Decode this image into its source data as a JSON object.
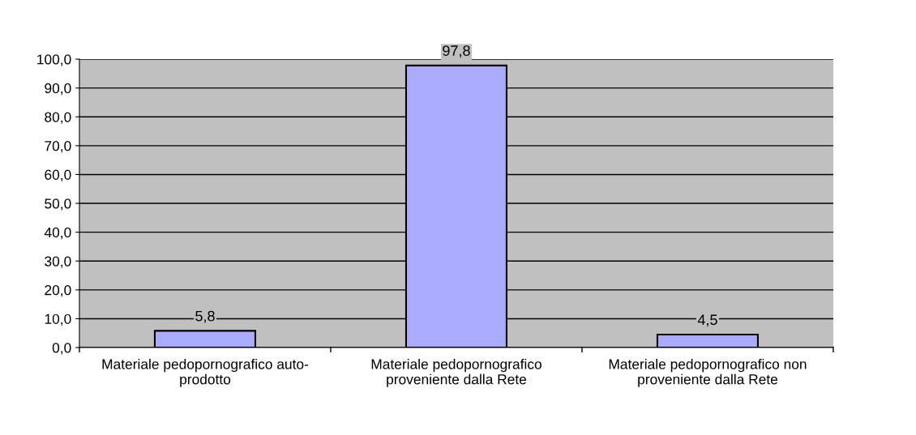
{
  "chart_data": {
    "type": "bar",
    "categories": [
      "Materiale pedopornografico auto-\nprodotto",
      "Materiale pedopornografico\nproveniente dalla Rete",
      "Materiale pedopornografico non\nproveniente dalla Rete"
    ],
    "values": [
      5.8,
      97.8,
      4.5
    ],
    "value_labels": [
      "5,8",
      "97,8",
      "4,5"
    ],
    "color": "#aaaaff",
    "ylim": [
      0,
      100
    ],
    "yticks": [
      {
        "value": 0,
        "label": "0,0"
      },
      {
        "value": 10,
        "label": "10,0"
      },
      {
        "value": 20,
        "label": "20,0"
      },
      {
        "value": 30,
        "label": "30,0"
      },
      {
        "value": 40,
        "label": "40,0"
      },
      {
        "value": 50,
        "label": "50,0"
      },
      {
        "value": 60,
        "label": "60,0"
      },
      {
        "value": 70,
        "label": "70,0"
      },
      {
        "value": 80,
        "label": "80,0"
      },
      {
        "value": 90,
        "label": "90,0"
      },
      {
        "value": 100,
        "label": "100,0"
      }
    ],
    "grid": "y",
    "legend": false
  }
}
